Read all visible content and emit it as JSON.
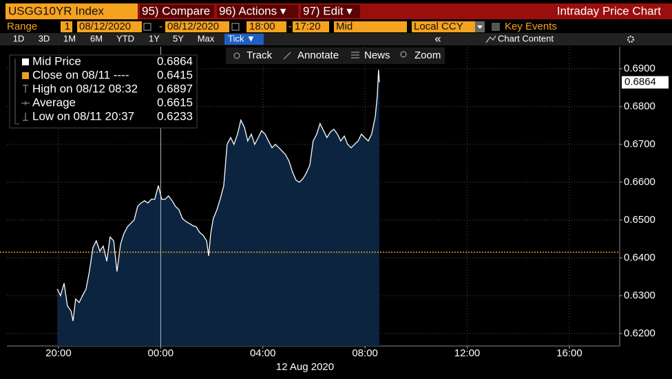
{
  "ui": {
    "security": "USGG10YR Index",
    "compare": "95) Compare",
    "actions": "96) Actions ▾",
    "edit": "97) Edit ▾",
    "window_title": "Intraday Price Chart",
    "range_label": "Range",
    "range_count": "1",
    "start_date": "08/12/2020",
    "dash1": "-",
    "end_date": "08/12/2020",
    "start_time": "18:00",
    "dash2": "-",
    "end_time": "17:20",
    "price_field": "Mid",
    "currency": "Local CCY",
    "key_events": "Key Events",
    "periods": [
      "1D",
      "3D",
      "1M",
      "6M",
      "YTD",
      "1Y",
      "5Y",
      "Max"
    ],
    "frequency": "Tick ▼",
    "collapse": "«",
    "chart_content": "Chart Content",
    "tools": [
      "Track",
      "Annotate",
      "News",
      "Zoom"
    ]
  },
  "chart_data": {
    "type": "area",
    "x_label": "12 Aug 2020",
    "x": [
      19.95,
      20.08,
      20.22,
      20.35,
      20.49,
      20.57,
      20.67,
      20.81,
      20.94,
      21.08,
      21.21,
      21.35,
      21.48,
      21.62,
      21.75,
      21.89,
      22.02,
      22.16,
      22.29,
      22.43,
      22.56,
      22.7,
      22.83,
      22.96,
      23.1,
      23.23,
      23.37,
      23.5,
      23.64,
      23.77,
      23.91,
      24.04,
      24.18,
      24.31,
      24.45,
      24.58,
      24.72,
      24.85,
      24.99,
      25.12,
      25.26,
      25.39,
      25.53,
      25.66,
      25.8,
      25.88,
      25.96,
      26.06,
      26.2,
      26.33,
      26.47,
      26.6,
      26.74,
      26.87,
      27.01,
      27.14,
      27.28,
      27.41,
      27.55,
      27.68,
      27.82,
      27.95,
      28.09,
      28.22,
      28.36,
      28.49,
      28.63,
      28.76,
      28.89,
      29.03,
      29.16,
      29.3,
      29.43,
      29.57,
      29.7,
      29.84,
      29.97,
      30.11,
      30.24,
      30.38,
      30.51,
      30.65,
      30.78,
      30.92,
      31.05,
      31.19,
      31.32,
      31.46,
      31.59,
      31.73,
      31.86,
      31.99,
      32.13,
      32.26,
      32.4,
      32.48,
      32.53,
      32.56
    ],
    "series": [
      {
        "name": "Mid Price",
        "color": "#ffffff",
        "fill": "#0c2440",
        "last_value": 0.6864,
        "values": [
          0.6318,
          0.63,
          0.6333,
          0.6273,
          0.626,
          0.6233,
          0.6291,
          0.6282,
          0.63,
          0.6318,
          0.6364,
          0.6427,
          0.6445,
          0.6418,
          0.6431,
          0.6391,
          0.6455,
          0.6445,
          0.6364,
          0.6436,
          0.6464,
          0.6482,
          0.6491,
          0.65,
          0.6536,
          0.6545,
          0.6551,
          0.6545,
          0.6555,
          0.6555,
          0.6591,
          0.6555,
          0.6555,
          0.6564,
          0.6551,
          0.6536,
          0.6527,
          0.6504,
          0.6496,
          0.6491,
          0.6485,
          0.6482,
          0.6467,
          0.646,
          0.6445,
          0.6405,
          0.6464,
          0.6504,
          0.6527,
          0.6555,
          0.6591,
          0.67,
          0.6718,
          0.67,
          0.6727,
          0.6764,
          0.6745,
          0.6709,
          0.6727,
          0.67,
          0.6718,
          0.6736,
          0.6727,
          0.6709,
          0.6691,
          0.67,
          0.6691,
          0.6682,
          0.6673,
          0.6655,
          0.6627,
          0.6605,
          0.66,
          0.6609,
          0.6624,
          0.6645,
          0.6709,
          0.6727,
          0.6755,
          0.6736,
          0.6718,
          0.6733,
          0.674,
          0.6727,
          0.6709,
          0.6722,
          0.67,
          0.6691,
          0.67,
          0.6709,
          0.6727,
          0.6718,
          0.6709,
          0.6727,
          0.6773,
          0.6827,
          0.6897,
          0.6864
        ]
      }
    ],
    "legend": [
      {
        "label": "Close on 08/11 ----",
        "value": 0.6415,
        "color": "#f0a020"
      },
      {
        "label": "High on 08/12 08:32",
        "value": 0.6897
      },
      {
        "label": "Average",
        "value": 0.6615
      },
      {
        "label": "Low on 08/11 20:37",
        "value": 0.6233
      }
    ],
    "xlim": [
      17.98,
      41.97
    ],
    "xticks": [
      {
        "value": 20,
        "label": "20:00"
      },
      {
        "value": 24,
        "label": "00:00"
      },
      {
        "value": 28,
        "label": "04:00"
      },
      {
        "value": 32,
        "label": "08:00"
      },
      {
        "value": 36,
        "label": "12:00"
      },
      {
        "value": 40,
        "label": "16:00"
      }
    ],
    "ylim": [
      0.6167,
      0.6958
    ],
    "yticks": [
      {
        "value": 0.62,
        "label": "0.6200"
      },
      {
        "value": 0.63,
        "label": "0.6300"
      },
      {
        "value": 0.64,
        "label": "0.6400"
      },
      {
        "value": 0.65,
        "label": "0.6500"
      },
      {
        "value": 0.66,
        "label": "0.6600"
      },
      {
        "value": 0.67,
        "label": "0.6700"
      },
      {
        "value": 0.68,
        "label": "0.6800"
      },
      {
        "value": 0.69,
        "label": "0.6900"
      }
    ],
    "grid": true
  }
}
